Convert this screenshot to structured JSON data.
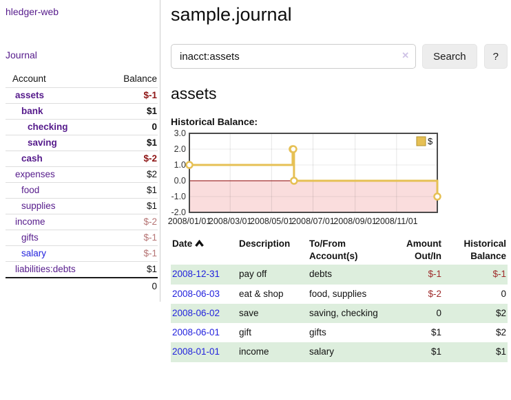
{
  "colors": {
    "link_purple": "#551a8b",
    "link_blue": "#2222dd",
    "negative_strong": "#8e1515",
    "negative": "#9e2b2b",
    "negative_soft": "#b57373",
    "row_green": "#ddeedd",
    "chart_line_gold": "#e6c054",
    "chart_negative_fill": "#fadddd",
    "chart_zero_line": "#8b0000",
    "chart_border": "#4a4a4a"
  },
  "app": {
    "brand": "hledger-web",
    "nav_journal": "Journal"
  },
  "sidebar": {
    "col_account": "Account",
    "col_balance": "Balance",
    "accounts": [
      {
        "name": "assets",
        "depth": 1,
        "bold": true,
        "balance": "$-1",
        "negative": true
      },
      {
        "name": "bank",
        "depth": 2,
        "bold": true,
        "balance": "$1",
        "negative": false
      },
      {
        "name": "checking",
        "depth": 3,
        "bold": true,
        "balance": "0",
        "negative": false
      },
      {
        "name": "saving",
        "depth": 3,
        "bold": true,
        "balance": "$1",
        "negative": false
      },
      {
        "name": "cash",
        "depth": 2,
        "bold": true,
        "balance": "$-2",
        "negative": true
      },
      {
        "name": "expenses",
        "depth": 1,
        "bold": false,
        "balance": "$2",
        "negative": false
      },
      {
        "name": "food",
        "depth": 2,
        "bold": false,
        "balance": "$1",
        "negative": false
      },
      {
        "name": "supplies",
        "depth": 2,
        "bold": false,
        "balance": "$1",
        "negative": false
      },
      {
        "name": "income",
        "depth": 1,
        "bold": false,
        "balance": "$-2",
        "negative": true
      },
      {
        "name": "gifts",
        "depth": 2,
        "bold": false,
        "balance": "$-1",
        "negative": true
      },
      {
        "name": "salary",
        "depth": 2,
        "bold": false,
        "balance": "$-1",
        "negative": true,
        "blue": true
      },
      {
        "name": "liabilities:debts",
        "depth": 1,
        "bold": false,
        "balance": "$1",
        "negative": false
      }
    ],
    "total": "0"
  },
  "header": {
    "title": "sample.journal"
  },
  "search": {
    "value": "inacct:assets",
    "clear_icon": "✕",
    "button_label": "Search",
    "help_label": "?"
  },
  "account_page": {
    "title": "assets",
    "section_label": "Historical Balance:"
  },
  "chart_data": {
    "type": "line",
    "title": "Historical Balance:",
    "x_range_days": [
      0,
      365
    ],
    "ylim": [
      -2,
      3
    ],
    "y_ticks": [
      3.0,
      2.0,
      1.0,
      0.0,
      -1.0,
      -2.0
    ],
    "x_ticks": [
      {
        "label": "2008/01/01",
        "day": 0
      },
      {
        "label": "2008/03/01",
        "day": 60
      },
      {
        "label": "2008/05/01",
        "day": 121
      },
      {
        "label": "2008/07/01",
        "day": 182
      },
      {
        "label": "2008/09/01",
        "day": 244
      },
      {
        "label": "2008/11/01",
        "day": 305
      }
    ],
    "legend_position": "top-right",
    "grid": true,
    "series": [
      {
        "name": "$",
        "style": "step",
        "points": [
          {
            "date": "2008-01-01",
            "day": 0,
            "value": 1
          },
          {
            "date": "2008-06-01",
            "day": 152,
            "value": 2
          },
          {
            "date": "2008-06-02",
            "day": 153,
            "value": 2
          },
          {
            "date": "2008-06-03",
            "day": 154,
            "value": 0
          },
          {
            "date": "2008-12-31",
            "day": 365,
            "value": -1
          }
        ]
      }
    ]
  },
  "register": {
    "headers": {
      "date": "Date",
      "description": "Description",
      "accounts": "To/From Account(s)",
      "amount": "Amount Out/In",
      "balance": "Historical Balance"
    },
    "rows": [
      {
        "date": "2008-12-31",
        "description": "pay off",
        "accounts": "debts",
        "amount": "$-1",
        "amount_negative": true,
        "balance": "$-1",
        "balance_negative": true
      },
      {
        "date": "2008-06-03",
        "description": "eat & shop",
        "accounts": "food, supplies",
        "amount": "$-2",
        "amount_negative": true,
        "balance": "0",
        "balance_negative": false
      },
      {
        "date": "2008-06-02",
        "description": "save",
        "accounts": "saving, checking",
        "amount": "0",
        "amount_negative": false,
        "balance": "$2",
        "balance_negative": false
      },
      {
        "date": "2008-06-01",
        "description": "gift",
        "accounts": "gifts",
        "amount": "$1",
        "amount_negative": false,
        "balance": "$2",
        "balance_negative": false
      },
      {
        "date": "2008-01-01",
        "description": "income",
        "accounts": "salary",
        "amount": "$1",
        "amount_negative": false,
        "balance": "$1",
        "balance_negative": false
      }
    ]
  }
}
